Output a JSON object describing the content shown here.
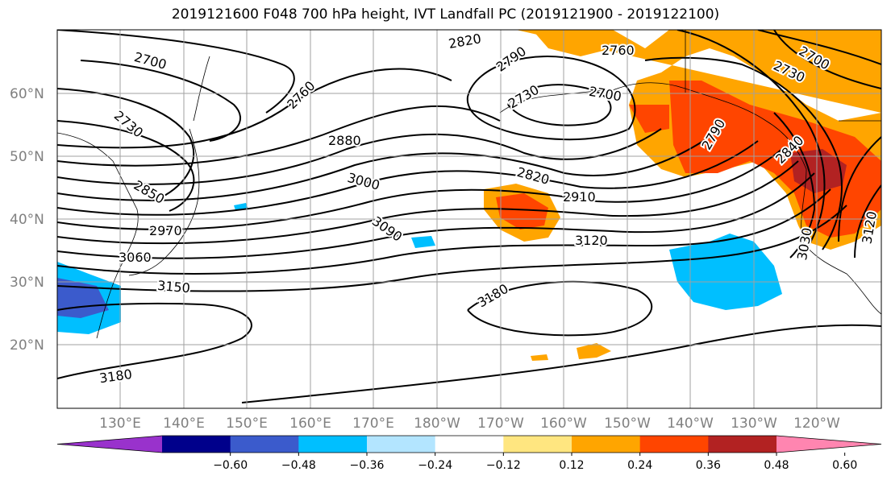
{
  "title": "2019121600 F048 700 hPa height, IVT Landfall PC (2019121900 - 2019122100)",
  "lat_labels": [
    "60°N",
    "50°N",
    "40°N",
    "30°N",
    "20°N"
  ],
  "lon_labels": [
    "130°E",
    "140°E",
    "150°E",
    "160°E",
    "170°E",
    "180°W",
    "170°W",
    "160°W",
    "150°W",
    "140°W",
    "130°W",
    "120°W"
  ],
  "contour_labels": [
    "2820",
    "2790",
    "2760",
    "2700",
    "2730",
    "2700",
    "2760",
    "2730",
    "2700",
    "2790",
    "2880",
    "2730",
    "2850",
    "2820",
    "3000",
    "2910",
    "2970",
    "3090",
    "3120",
    "3060",
    "3180",
    "3150",
    "3180",
    "3030",
    "3120",
    "2840"
  ],
  "colorbar": {
    "colors": [
      "#9932cc",
      "#00008b",
      "#3b5bcc",
      "#00bfff",
      "#b3e5ff",
      "#ffffff",
      "#ffe680",
      "#ffa500",
      "#ff4500",
      "#b22222",
      "#ff85b0"
    ],
    "tick_labels": [
      "−0.60",
      "−0.48",
      "−0.36",
      "−0.24",
      "−0.12",
      "0.12",
      "0.24",
      "0.36",
      "0.48",
      "0.60"
    ]
  }
}
